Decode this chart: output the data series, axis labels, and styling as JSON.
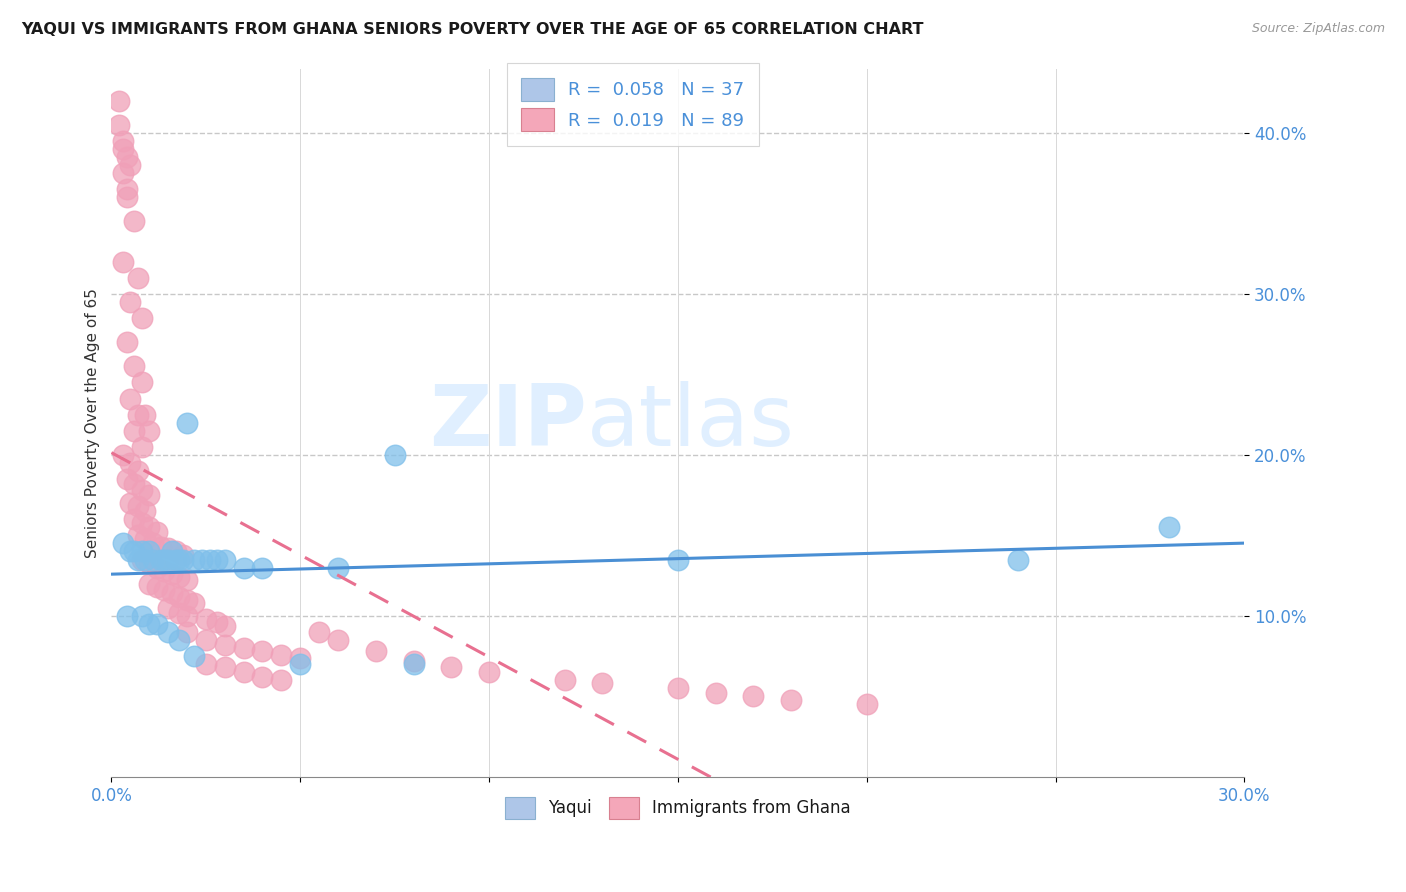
{
  "title": "YAQUI VS IMMIGRANTS FROM GHANA SENIORS POVERTY OVER THE AGE OF 65 CORRELATION CHART",
  "source": "Source: ZipAtlas.com",
  "ylabel": "Seniors Poverty Over the Age of 65",
  "xlim": [
    0.0,
    0.3
  ],
  "ylim": [
    0.0,
    0.44
  ],
  "yticks": [
    0.1,
    0.2,
    0.3,
    0.4
  ],
  "ytick_labels": [
    "10.0%",
    "20.0%",
    "30.0%",
    "40.0%"
  ],
  "xtick_left": "0.0%",
  "xtick_right": "30.0%",
  "color_yaqui": "#7fbfea",
  "color_ghana": "#f0a0b8",
  "watermark_zip": "ZIP",
  "watermark_atlas": "atlas",
  "legend1": "R =  0.058   N = 37",
  "legend2": "R =  0.019   N = 89",
  "legend_color": "#4a90d9",
  "yaqui_x": [
    0.003,
    0.005,
    0.006,
    0.007,
    0.008,
    0.009,
    0.01,
    0.011,
    0.013,
    0.014,
    0.015,
    0.016,
    0.017,
    0.018,
    0.019,
    0.02,
    0.022,
    0.024,
    0.026,
    0.028,
    0.03,
    0.035,
    0.04,
    0.05,
    0.06,
    0.075,
    0.004,
    0.008,
    0.01,
    0.012,
    0.015,
    0.018,
    0.022,
    0.15,
    0.24,
    0.28,
    0.08
  ],
  "yaqui_y": [
    0.145,
    0.14,
    0.14,
    0.135,
    0.14,
    0.135,
    0.14,
    0.135,
    0.135,
    0.135,
    0.135,
    0.14,
    0.135,
    0.135,
    0.135,
    0.22,
    0.135,
    0.135,
    0.135,
    0.135,
    0.135,
    0.13,
    0.13,
    0.07,
    0.13,
    0.2,
    0.1,
    0.1,
    0.095,
    0.095,
    0.09,
    0.085,
    0.075,
    0.135,
    0.135,
    0.155,
    0.07
  ],
  "ghana_x": [
    0.003,
    0.005,
    0.004,
    0.006,
    0.003,
    0.007,
    0.005,
    0.008,
    0.004,
    0.006,
    0.008,
    0.005,
    0.007,
    0.009,
    0.006,
    0.01,
    0.008,
    0.003,
    0.005,
    0.007,
    0.004,
    0.006,
    0.008,
    0.01,
    0.005,
    0.007,
    0.009,
    0.006,
    0.008,
    0.01,
    0.012,
    0.007,
    0.009,
    0.011,
    0.013,
    0.015,
    0.017,
    0.019,
    0.008,
    0.01,
    0.012,
    0.014,
    0.016,
    0.018,
    0.02,
    0.01,
    0.012,
    0.014,
    0.016,
    0.018,
    0.02,
    0.022,
    0.015,
    0.018,
    0.02,
    0.025,
    0.028,
    0.03,
    0.02,
    0.025,
    0.03,
    0.035,
    0.04,
    0.045,
    0.05,
    0.025,
    0.03,
    0.035,
    0.04,
    0.045,
    0.055,
    0.06,
    0.07,
    0.08,
    0.09,
    0.1,
    0.12,
    0.13,
    0.15,
    0.16,
    0.17,
    0.18,
    0.2,
    0.002,
    0.002,
    0.003,
    0.004,
    0.003,
    0.004
  ],
  "ghana_y": [
    0.39,
    0.38,
    0.36,
    0.345,
    0.32,
    0.31,
    0.295,
    0.285,
    0.27,
    0.255,
    0.245,
    0.235,
    0.225,
    0.225,
    0.215,
    0.215,
    0.205,
    0.2,
    0.195,
    0.19,
    0.185,
    0.182,
    0.178,
    0.175,
    0.17,
    0.168,
    0.165,
    0.16,
    0.158,
    0.155,
    0.152,
    0.15,
    0.148,
    0.145,
    0.143,
    0.142,
    0.14,
    0.138,
    0.135,
    0.133,
    0.13,
    0.128,
    0.126,
    0.124,
    0.122,
    0.12,
    0.118,
    0.116,
    0.114,
    0.112,
    0.11,
    0.108,
    0.105,
    0.102,
    0.1,
    0.098,
    0.096,
    0.094,
    0.09,
    0.085,
    0.082,
    0.08,
    0.078,
    0.076,
    0.074,
    0.07,
    0.068,
    0.065,
    0.062,
    0.06,
    0.09,
    0.085,
    0.078,
    0.072,
    0.068,
    0.065,
    0.06,
    0.058,
    0.055,
    0.052,
    0.05,
    0.048,
    0.045,
    0.42,
    0.405,
    0.395,
    0.385,
    0.375,
    0.365
  ]
}
